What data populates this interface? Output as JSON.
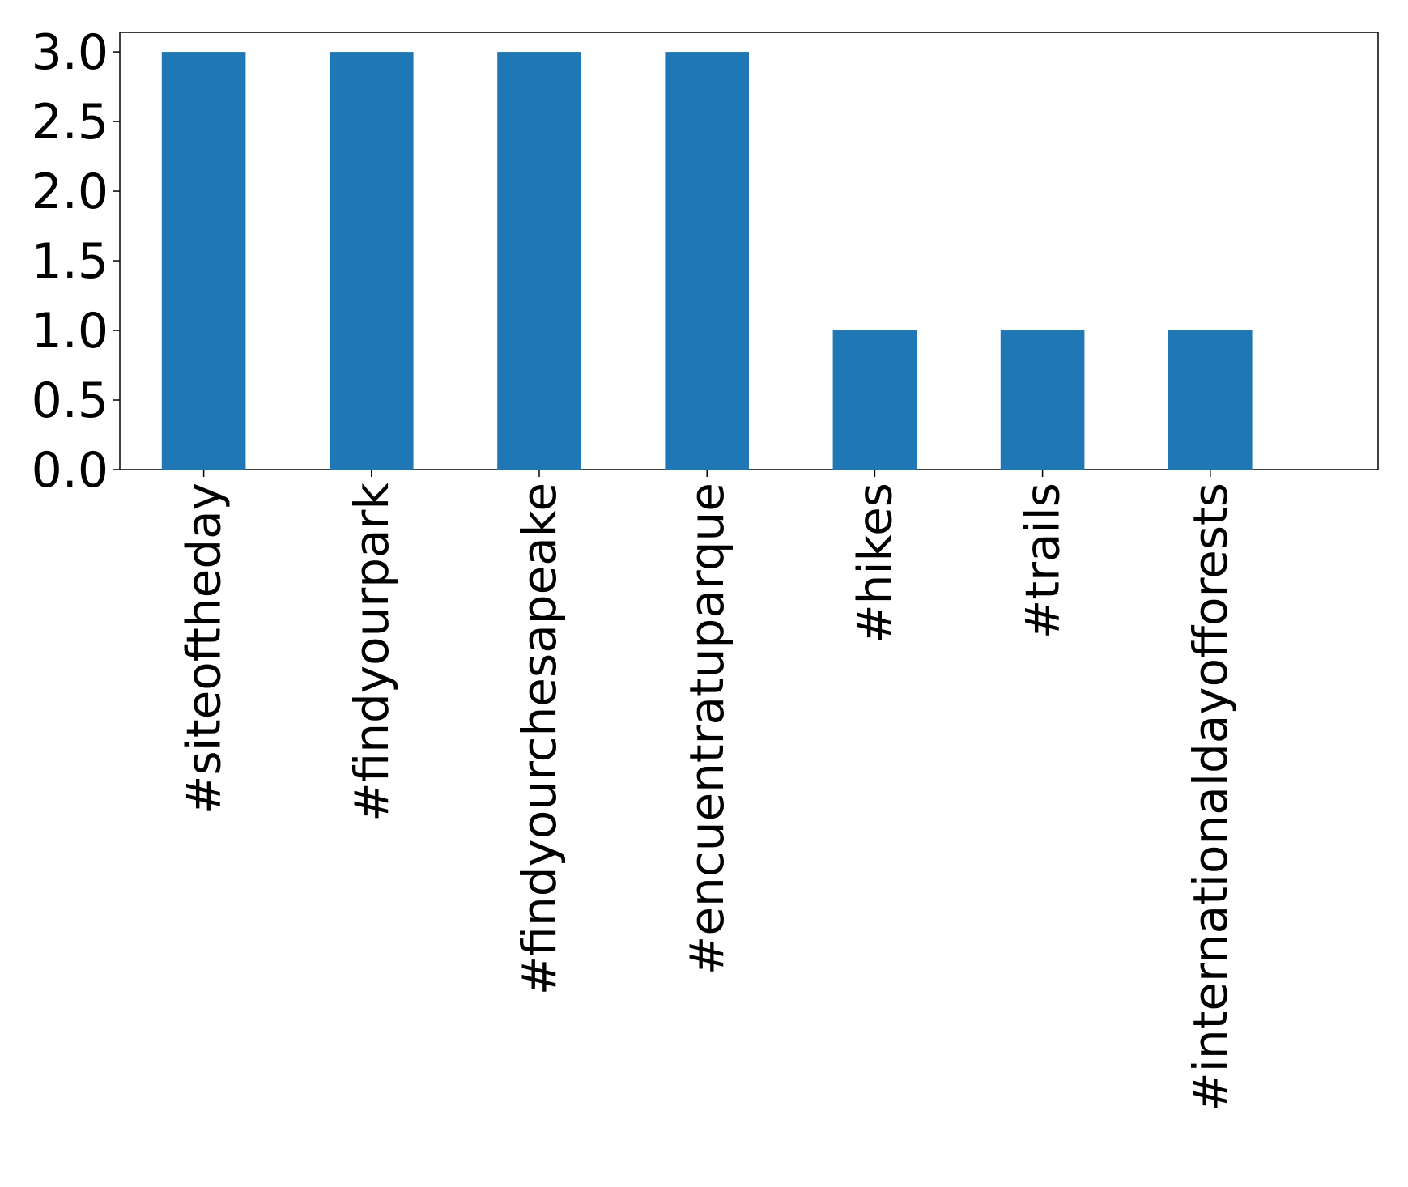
{
  "chart_data": {
    "type": "bar",
    "title": "",
    "xlabel": "",
    "ylabel": "",
    "categories": [
      "#siteoftheday",
      "#findyourpark",
      "#findyourchesapeake",
      "#encuentratuparque",
      "#hikes",
      "#trails",
      "#internationaldayofforests"
    ],
    "values": [
      3,
      3,
      3,
      3,
      1,
      1,
      1
    ],
    "ylim": [
      0,
      3.14
    ],
    "yticks": [
      0.0,
      0.5,
      1.0,
      1.5,
      2.0,
      2.5,
      3.0
    ],
    "ytick_labels": [
      "0.0",
      "0.5",
      "1.0",
      "1.5",
      "2.0",
      "2.5",
      "3.0"
    ],
    "grid": false,
    "legend": "none",
    "bar_color": "#1f77b4",
    "x_tick_label_rotation": "vertical"
  }
}
